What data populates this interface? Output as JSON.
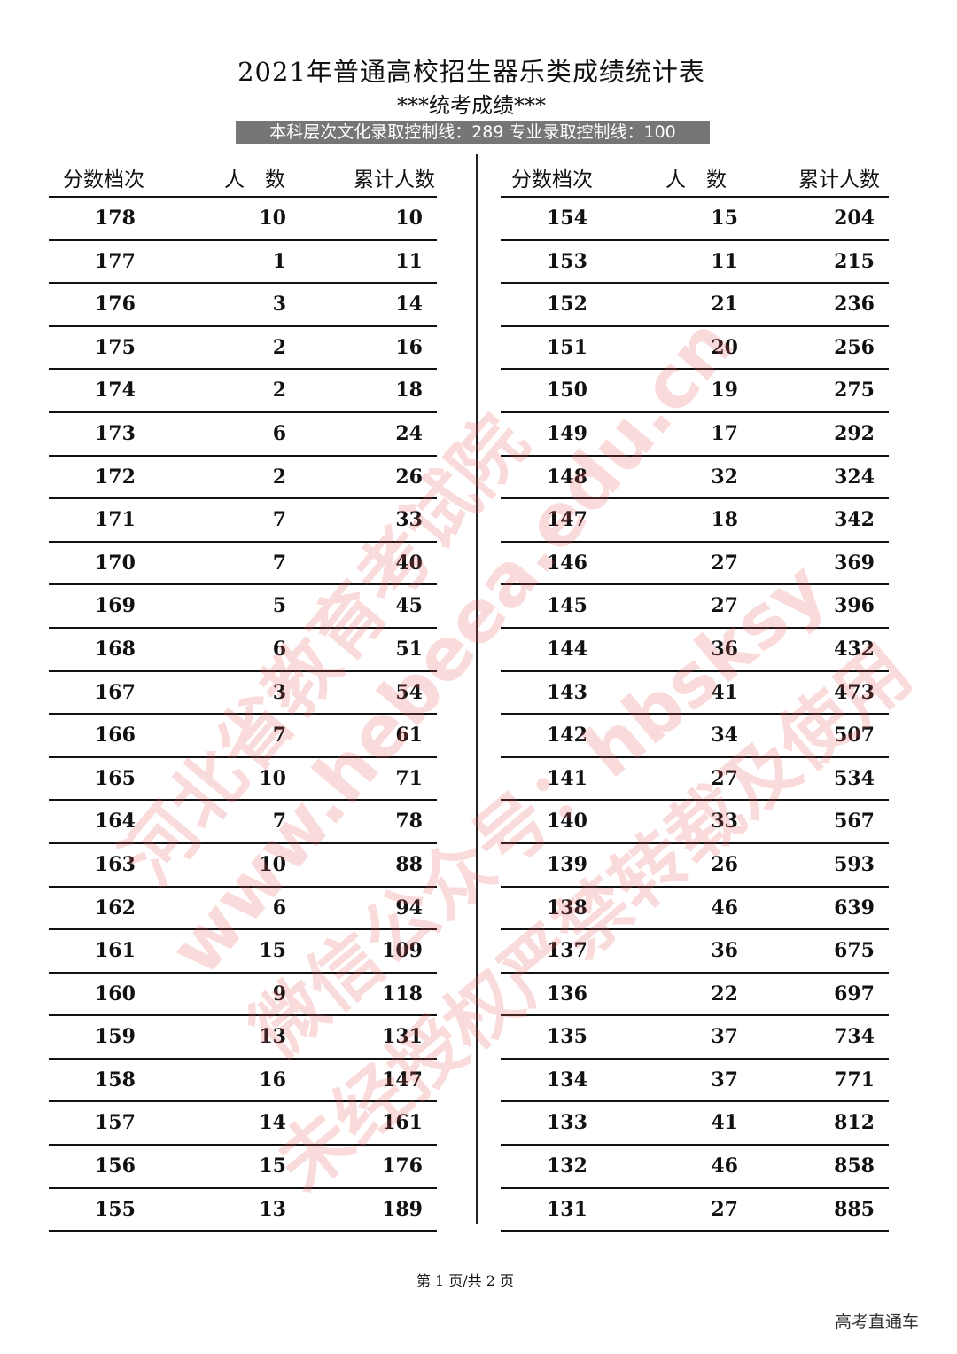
{
  "title": "2021年普通高校招生器乐类成绩统计表",
  "subtitle": "***统考成绩***",
  "banner": "本科层次文化录取控制线：289 专业录取控制线：100",
  "headers": {
    "score": "分数档次",
    "count": "人　数",
    "cumulative": "累计人数"
  },
  "left_rows": [
    [
      "178",
      "10",
      "10"
    ],
    [
      "177",
      "1",
      "11"
    ],
    [
      "176",
      "3",
      "14"
    ],
    [
      "175",
      "2",
      "16"
    ],
    [
      "174",
      "2",
      "18"
    ],
    [
      "173",
      "6",
      "24"
    ],
    [
      "172",
      "2",
      "26"
    ],
    [
      "171",
      "7",
      "33"
    ],
    [
      "170",
      "7",
      "40"
    ],
    [
      "169",
      "5",
      "45"
    ],
    [
      "168",
      "6",
      "51"
    ],
    [
      "167",
      "3",
      "54"
    ],
    [
      "166",
      "7",
      "61"
    ],
    [
      "165",
      "10",
      "71"
    ],
    [
      "164",
      "7",
      "78"
    ],
    [
      "163",
      "10",
      "88"
    ],
    [
      "162",
      "6",
      "94"
    ],
    [
      "161",
      "15",
      "109"
    ],
    [
      "160",
      "9",
      "118"
    ],
    [
      "159",
      "13",
      "131"
    ],
    [
      "158",
      "16",
      "147"
    ],
    [
      "157",
      "14",
      "161"
    ],
    [
      "156",
      "15",
      "176"
    ],
    [
      "155",
      "13",
      "189"
    ]
  ],
  "right_rows": [
    [
      "154",
      "15",
      "204"
    ],
    [
      "153",
      "11",
      "215"
    ],
    [
      "152",
      "21",
      "236"
    ],
    [
      "151",
      "20",
      "256"
    ],
    [
      "150",
      "19",
      "275"
    ],
    [
      "149",
      "17",
      "292"
    ],
    [
      "148",
      "32",
      "324"
    ],
    [
      "147",
      "18",
      "342"
    ],
    [
      "146",
      "27",
      "369"
    ],
    [
      "145",
      "27",
      "396"
    ],
    [
      "144",
      "36",
      "432"
    ],
    [
      "143",
      "41",
      "473"
    ],
    [
      "142",
      "34",
      "507"
    ],
    [
      "141",
      "27",
      "534"
    ],
    [
      "140",
      "33",
      "567"
    ],
    [
      "139",
      "26",
      "593"
    ],
    [
      "138",
      "46",
      "639"
    ],
    [
      "137",
      "36",
      "675"
    ],
    [
      "136",
      "22",
      "697"
    ],
    [
      "135",
      "37",
      "734"
    ],
    [
      "134",
      "37",
      "771"
    ],
    [
      "133",
      "41",
      "812"
    ],
    [
      "132",
      "46",
      "858"
    ],
    [
      "131",
      "27",
      "885"
    ]
  ],
  "footer": "第 1 页/共 2 页",
  "brand": "高考直通车",
  "watermark": [
    "河北省教育考试院",
    "www.hebeea.edu.cn",
    "微信公众号：hbsksy",
    "未经授权严禁转载及使用"
  ],
  "colors": {
    "banner": "#767676",
    "watermark": "#e65a5a"
  }
}
